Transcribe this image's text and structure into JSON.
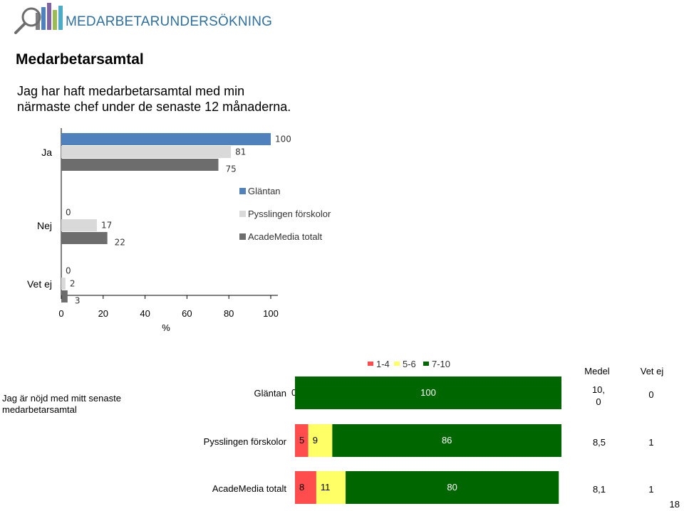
{
  "header": {
    "logo_text": "MEDARBETARUNDERSÖKNING",
    "colors": {
      "logo": "#2e6f9e"
    },
    "icon": "magnifier-bar-chart-icon"
  },
  "page": {
    "title": "Medarbetarsamtal",
    "question_line1": "Jag har haft medarbetarsamtal med min",
    "question_line2": "närmaste chef under de senaste 12 månaderna.",
    "page_number": "18"
  },
  "chart_data": [
    {
      "type": "bar",
      "orientation": "horizontal",
      "categories": [
        "Ja",
        "Nej",
        "Vet ej"
      ],
      "series": [
        {
          "name": "Gläntan",
          "values": [
            100,
            0,
            0
          ],
          "labels": [
            "100",
            "0",
            "0"
          ],
          "color": "#4f81bd"
        },
        {
          "name": "Pysslingen förskolor",
          "values": [
            81,
            17,
            2
          ],
          "labels": [
            "81",
            "17",
            "2"
          ],
          "color": "#d9d9d9"
        },
        {
          "name": "AcadeMedia totalt",
          "values": [
            75,
            22,
            3
          ],
          "labels": [
            "75",
            "22",
            "3"
          ],
          "color": "#6d6d6d"
        }
      ],
      "xticks": [
        "0",
        "20",
        "40",
        "60",
        "80",
        "100"
      ],
      "xlim": [
        0,
        100
      ],
      "xlabel": "%",
      "legend": "right"
    },
    {
      "type": "bar",
      "orientation": "horizontal",
      "stacked": true,
      "legend": [
        {
          "label": "1-4",
          "color": "#ff4d4d"
        },
        {
          "label": "5-6",
          "color": "#ffff66"
        },
        {
          "label": "7-10",
          "color": "#006600"
        }
      ],
      "header_medel": "Medel",
      "header_vet_ej": "Vet ej",
      "row_title_line1": "Jag är nöjd med mitt senaste",
      "row_title_line2": "medarbetarsamtal",
      "categories": [
        "Gläntan",
        "Pysslingen förskolor",
        "AcadeMedia totalt"
      ],
      "series": [
        {
          "name": "1-4",
          "values": [
            0,
            5,
            8
          ]
        },
        {
          "name": "5-6",
          "values": [
            0,
            9,
            11
          ]
        },
        {
          "name": "7-10",
          "values": [
            100,
            86,
            80
          ]
        }
      ],
      "medel": [
        "10,\n0",
        "8,5",
        "8,1"
      ],
      "medel_line1": [
        "10,",
        "8,5",
        "8,1"
      ],
      "medel_line2": [
        "0",
        "",
        ""
      ],
      "vet_ej": [
        "0",
        "1",
        "1"
      ]
    }
  ]
}
